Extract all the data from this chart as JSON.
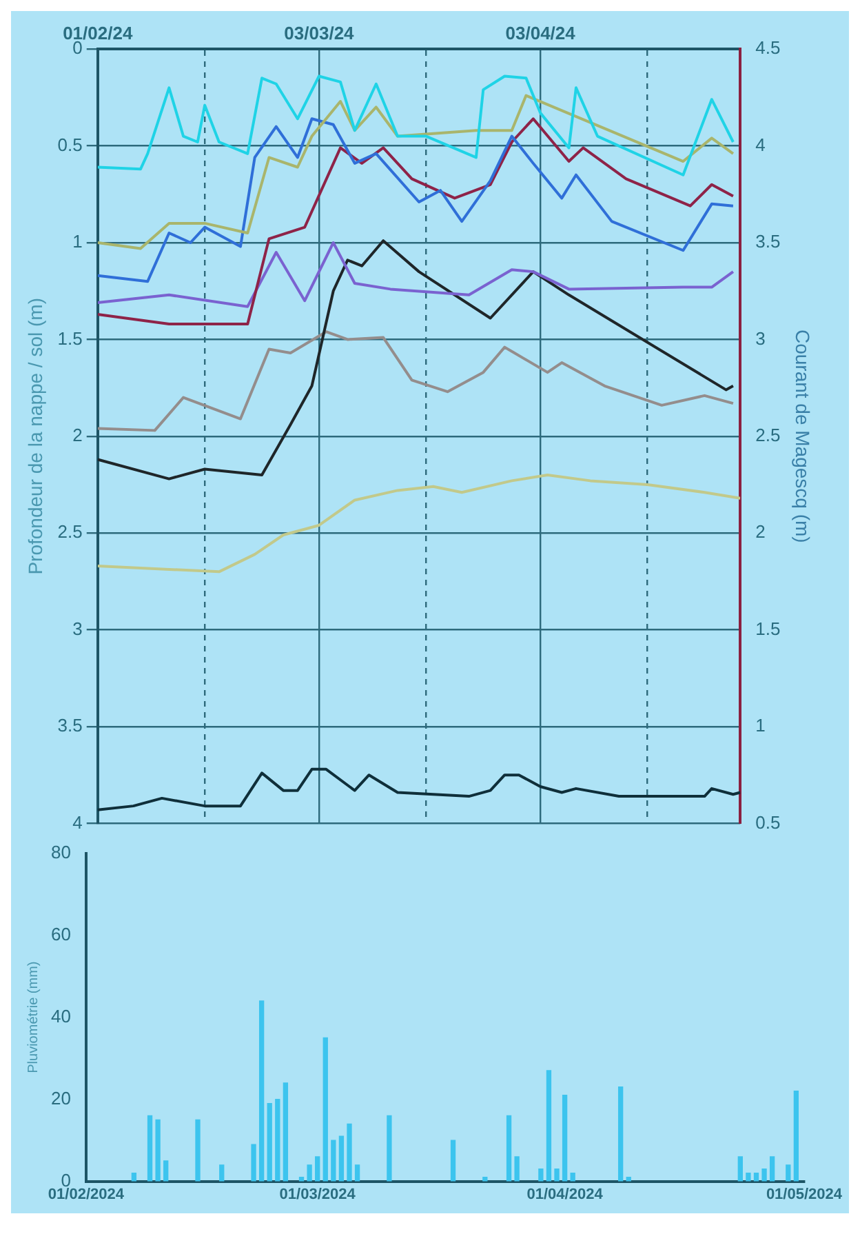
{
  "chart_data": [
    {
      "type": "line",
      "ylabel": "Profondeur de la nappe / sol (m)",
      "y2label": "Courant de Magescq (m)",
      "xlim": [
        "2024-02-01",
        "2024-05-01"
      ],
      "xticks": [
        {
          "value": "2024-02-01",
          "label": "01/02/24"
        },
        {
          "value": "2024-02-16",
          "label": null
        },
        {
          "value": "2024-03-03",
          "label": "03/03/24"
        },
        {
          "value": "2024-03-18",
          "label": null
        },
        {
          "value": "2024-04-03",
          "label": "03/04/24"
        },
        {
          "value": "2024-04-18",
          "label": null
        }
      ],
      "ylim": [
        4,
        0
      ],
      "yticks": [
        0,
        0.5,
        1,
        1.5,
        2,
        2.5,
        3,
        3.5,
        4
      ],
      "y2lim": [
        0.5,
        4.5
      ],
      "y2ticks": [
        0.5,
        1,
        1.5,
        2,
        2.5,
        3,
        3.5,
        4,
        4.5
      ],
      "grid": true,
      "legend": false,
      "series": [
        {
          "color": "#1fd3e6",
          "x": [
            "2024-02-01",
            "2024-02-07",
            "2024-02-08",
            "2024-02-11",
            "2024-02-13",
            "2024-02-15",
            "2024-02-16",
            "2024-02-18",
            "2024-02-22",
            "2024-02-24",
            "2024-02-26",
            "2024-02-29",
            "2024-03-03",
            "2024-03-06",
            "2024-03-08",
            "2024-03-11",
            "2024-03-14",
            "2024-03-18",
            "2024-03-25",
            "2024-03-26",
            "2024-03-29",
            "2024-04-01",
            "2024-04-03",
            "2024-04-07",
            "2024-04-08",
            "2024-04-11",
            "2024-04-23",
            "2024-04-27",
            "2024-04-30"
          ],
          "values": [
            0.61,
            0.62,
            0.54,
            0.2,
            0.45,
            0.48,
            0.29,
            0.48,
            0.54,
            0.15,
            0.18,
            0.36,
            0.14,
            0.17,
            0.42,
            0.18,
            0.45,
            0.45,
            0.56,
            0.21,
            0.14,
            0.15,
            0.33,
            0.51,
            0.2,
            0.45,
            0.65,
            0.26,
            0.48
          ]
        },
        {
          "color": "#a9b56c",
          "x": [
            "2024-02-01",
            "2024-02-07",
            "2024-02-11",
            "2024-02-16",
            "2024-02-22",
            "2024-02-25",
            "2024-02-29",
            "2024-03-02",
            "2024-03-06",
            "2024-03-08",
            "2024-03-11",
            "2024-03-14",
            "2024-03-25",
            "2024-03-30",
            "2024-04-01",
            "2024-04-23",
            "2024-04-27",
            "2024-04-30"
          ],
          "values": [
            1.0,
            1.03,
            0.9,
            0.9,
            0.95,
            0.56,
            0.61,
            0.45,
            0.27,
            0.42,
            0.3,
            0.45,
            0.42,
            0.42,
            0.24,
            0.58,
            0.46,
            0.54
          ]
        },
        {
          "color": "#2f6fd8",
          "x": [
            "2024-02-01",
            "2024-02-08",
            "2024-02-11",
            "2024-02-14",
            "2024-02-16",
            "2024-02-21",
            "2024-02-23",
            "2024-02-26",
            "2024-02-29",
            "2024-03-02",
            "2024-03-05",
            "2024-03-08",
            "2024-03-11",
            "2024-03-17",
            "2024-03-20",
            "2024-03-23",
            "2024-03-27",
            "2024-03-30",
            "2024-04-02",
            "2024-04-06",
            "2024-04-08",
            "2024-04-13",
            "2024-04-23",
            "2024-04-27",
            "2024-04-30"
          ],
          "values": [
            1.17,
            1.2,
            0.95,
            1.0,
            0.92,
            1.02,
            0.56,
            0.4,
            0.56,
            0.36,
            0.39,
            0.59,
            0.54,
            0.79,
            0.73,
            0.89,
            0.68,
            0.45,
            0.59,
            0.77,
            0.65,
            0.89,
            1.04,
            0.8,
            0.81
          ]
        },
        {
          "color": "#8e2348",
          "x": [
            "2024-02-01",
            "2024-02-11",
            "2024-02-22",
            "2024-02-25",
            "2024-03-01",
            "2024-03-06",
            "2024-03-09",
            "2024-03-12",
            "2024-03-16",
            "2024-03-22",
            "2024-03-27",
            "2024-03-30",
            "2024-04-02",
            "2024-04-07",
            "2024-04-09",
            "2024-04-15",
            "2024-04-24",
            "2024-04-27",
            "2024-04-30"
          ],
          "values": [
            1.37,
            1.42,
            1.42,
            0.98,
            0.92,
            0.51,
            0.59,
            0.51,
            0.67,
            0.77,
            0.7,
            0.48,
            0.36,
            0.58,
            0.51,
            0.67,
            0.81,
            0.7,
            0.76
          ]
        },
        {
          "color": "#7a62d0",
          "x": [
            "2024-02-01",
            "2024-02-11",
            "2024-02-22",
            "2024-02-26",
            "2024-03-01",
            "2024-03-05",
            "2024-03-08",
            "2024-03-13",
            "2024-03-24",
            "2024-03-30",
            "2024-04-02",
            "2024-04-07",
            "2024-04-23",
            "2024-04-27",
            "2024-04-30"
          ],
          "values": [
            1.31,
            1.27,
            1.33,
            1.05,
            1.3,
            1.0,
            1.21,
            1.24,
            1.27,
            1.14,
            1.15,
            1.24,
            1.23,
            1.23,
            1.15
          ]
        },
        {
          "color": "#1f2629",
          "x": [
            "2024-02-01",
            "2024-02-11",
            "2024-02-16",
            "2024-02-24",
            "2024-02-28",
            "2024-03-02",
            "2024-03-05",
            "2024-03-07",
            "2024-03-09",
            "2024-03-12",
            "2024-03-17",
            "2024-03-27",
            "2024-04-02",
            "2024-04-07",
            "2024-04-29",
            "2024-04-30"
          ],
          "values": [
            2.12,
            2.22,
            2.17,
            2.2,
            1.94,
            1.74,
            1.25,
            1.09,
            1.12,
            0.99,
            1.15,
            1.39,
            1.15,
            1.27,
            1.76,
            1.74
          ]
        },
        {
          "color": "#948d8c",
          "x": [
            "2024-02-01",
            "2024-02-09",
            "2024-02-13",
            "2024-02-21",
            "2024-02-25",
            "2024-02-28",
            "2024-03-04",
            "2024-03-07",
            "2024-03-12",
            "2024-03-16",
            "2024-03-21",
            "2024-03-26",
            "2024-03-29",
            "2024-04-04",
            "2024-04-06",
            "2024-04-12",
            "2024-04-20",
            "2024-04-26",
            "2024-04-30"
          ],
          "values": [
            1.96,
            1.97,
            1.8,
            1.91,
            1.55,
            1.57,
            1.46,
            1.5,
            1.49,
            1.71,
            1.77,
            1.67,
            1.54,
            1.67,
            1.62,
            1.74,
            1.84,
            1.79,
            1.83
          ]
        },
        {
          "color": "#c2c98a",
          "x": [
            "2024-02-01",
            "2024-02-18",
            "2024-02-23",
            "2024-02-27",
            "2024-03-03",
            "2024-03-08",
            "2024-03-14",
            "2024-03-19",
            "2024-03-23",
            "2024-03-30",
            "2024-04-04",
            "2024-04-10",
            "2024-04-18",
            "2024-04-26",
            "2024-05-01"
          ],
          "values": [
            2.67,
            2.7,
            2.61,
            2.51,
            2.46,
            2.33,
            2.28,
            2.26,
            2.29,
            2.23,
            2.2,
            2.23,
            2.25,
            2.29,
            2.32
          ]
        },
        {
          "color": "#0f2f3a",
          "axis": "y2",
          "x": [
            "2024-02-01",
            "2024-02-06",
            "2024-02-10",
            "2024-02-16",
            "2024-02-21",
            "2024-02-24",
            "2024-02-27",
            "2024-02-29",
            "2024-03-02",
            "2024-03-04",
            "2024-03-08",
            "2024-03-10",
            "2024-03-14",
            "2024-03-19",
            "2024-03-24",
            "2024-03-27",
            "2024-03-29",
            "2024-03-31",
            "2024-04-03",
            "2024-04-06",
            "2024-04-08",
            "2024-04-14",
            "2024-04-26",
            "2024-04-27",
            "2024-04-30",
            "2024-05-01"
          ],
          "values": [
            0.57,
            0.59,
            0.63,
            0.59,
            0.59,
            0.76,
            0.67,
            0.67,
            0.78,
            0.78,
            0.67,
            0.75,
            0.66,
            0.65,
            0.64,
            0.67,
            0.75,
            0.75,
            0.69,
            0.66,
            0.68,
            0.64,
            0.64,
            0.68,
            0.65,
            0.66
          ]
        }
      ]
    },
    {
      "type": "bar",
      "ylabel": "Pluviométrie (mm)",
      "xlim": [
        "2024-02-01",
        "2024-05-01"
      ],
      "xticks": [
        {
          "value": "2024-02-01",
          "label": "01/02/2024"
        },
        {
          "value": "2024-03-01",
          "label": "01/03/2024"
        },
        {
          "value": "2024-04-01",
          "label": "01/04/2024"
        },
        {
          "value": "2024-05-01",
          "label": "01/05/2024"
        }
      ],
      "ylim": [
        0,
        80
      ],
      "yticks": [
        0,
        20,
        40,
        60,
        80
      ],
      "grid": false,
      "legend": false,
      "series": [
        {
          "color": "#3cc4ee",
          "x": [
            "2024-02-07",
            "2024-02-09",
            "2024-02-10",
            "2024-02-11",
            "2024-02-15",
            "2024-02-18",
            "2024-02-22",
            "2024-02-23",
            "2024-02-24",
            "2024-02-25",
            "2024-02-26",
            "2024-02-28",
            "2024-02-29",
            "2024-03-01",
            "2024-03-02",
            "2024-03-03",
            "2024-03-04",
            "2024-03-05",
            "2024-03-06",
            "2024-03-10",
            "2024-03-18",
            "2024-03-22",
            "2024-03-25",
            "2024-03-26",
            "2024-03-29",
            "2024-03-30",
            "2024-03-31",
            "2024-04-01",
            "2024-04-02",
            "2024-04-08",
            "2024-04-09",
            "2024-04-23",
            "2024-04-24",
            "2024-04-25",
            "2024-04-26",
            "2024-04-27",
            "2024-04-29",
            "2024-04-30"
          ],
          "values": [
            2,
            16,
            15,
            5,
            15,
            4,
            9,
            44,
            19,
            20,
            24,
            1,
            4,
            6,
            35,
            10,
            11,
            14,
            4,
            16,
            10,
            1,
            16,
            6,
            3,
            27,
            3,
            21,
            2,
            23,
            1,
            6,
            2,
            2,
            3,
            6,
            4,
            22
          ]
        }
      ]
    }
  ]
}
